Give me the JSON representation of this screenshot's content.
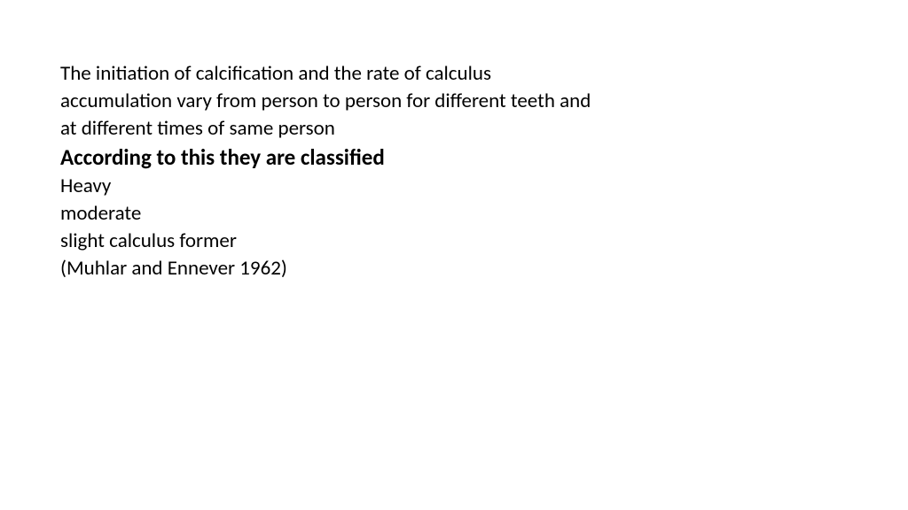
{
  "slide": {
    "intro": "The initiation of calcification and the rate of calculus accumulation vary from person to person for different teeth and at different times of same person",
    "heading": "According to this they are classified",
    "items": [
      "Heavy",
      "moderate",
      " slight calculus former",
      " (Muhlar and Ennever 1962)"
    ],
    "typography": {
      "body_fontsize": 23,
      "heading_fontsize": 25,
      "heading_weight": 700,
      "body_weight": 400,
      "font_family": "Calibri",
      "line_height": 1.35
    },
    "colors": {
      "text": "#000000",
      "background": "#ffffff"
    }
  }
}
